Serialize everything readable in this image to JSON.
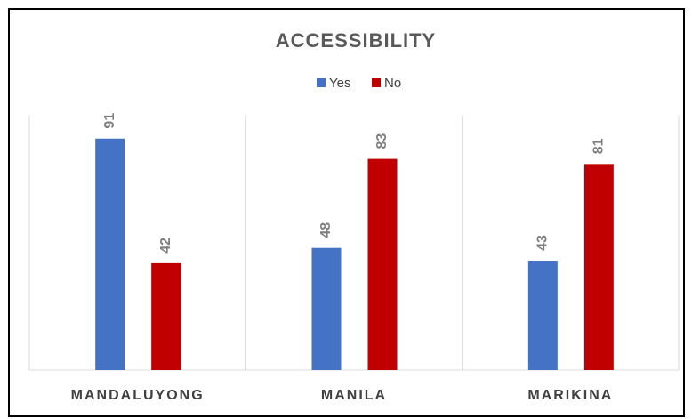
{
  "chart_data": {
    "type": "bar",
    "title": "ACCESSIBILITY",
    "categories": [
      "MANDALUYONG",
      "MANILA",
      "MARIKINA"
    ],
    "series": [
      {
        "name": "Yes",
        "color": "#4472c4",
        "values": [
          91,
          48,
          43
        ]
      },
      {
        "name": "No",
        "color": "#c00000",
        "values": [
          42,
          83,
          81
        ]
      }
    ],
    "ylim": [
      0,
      100
    ]
  }
}
